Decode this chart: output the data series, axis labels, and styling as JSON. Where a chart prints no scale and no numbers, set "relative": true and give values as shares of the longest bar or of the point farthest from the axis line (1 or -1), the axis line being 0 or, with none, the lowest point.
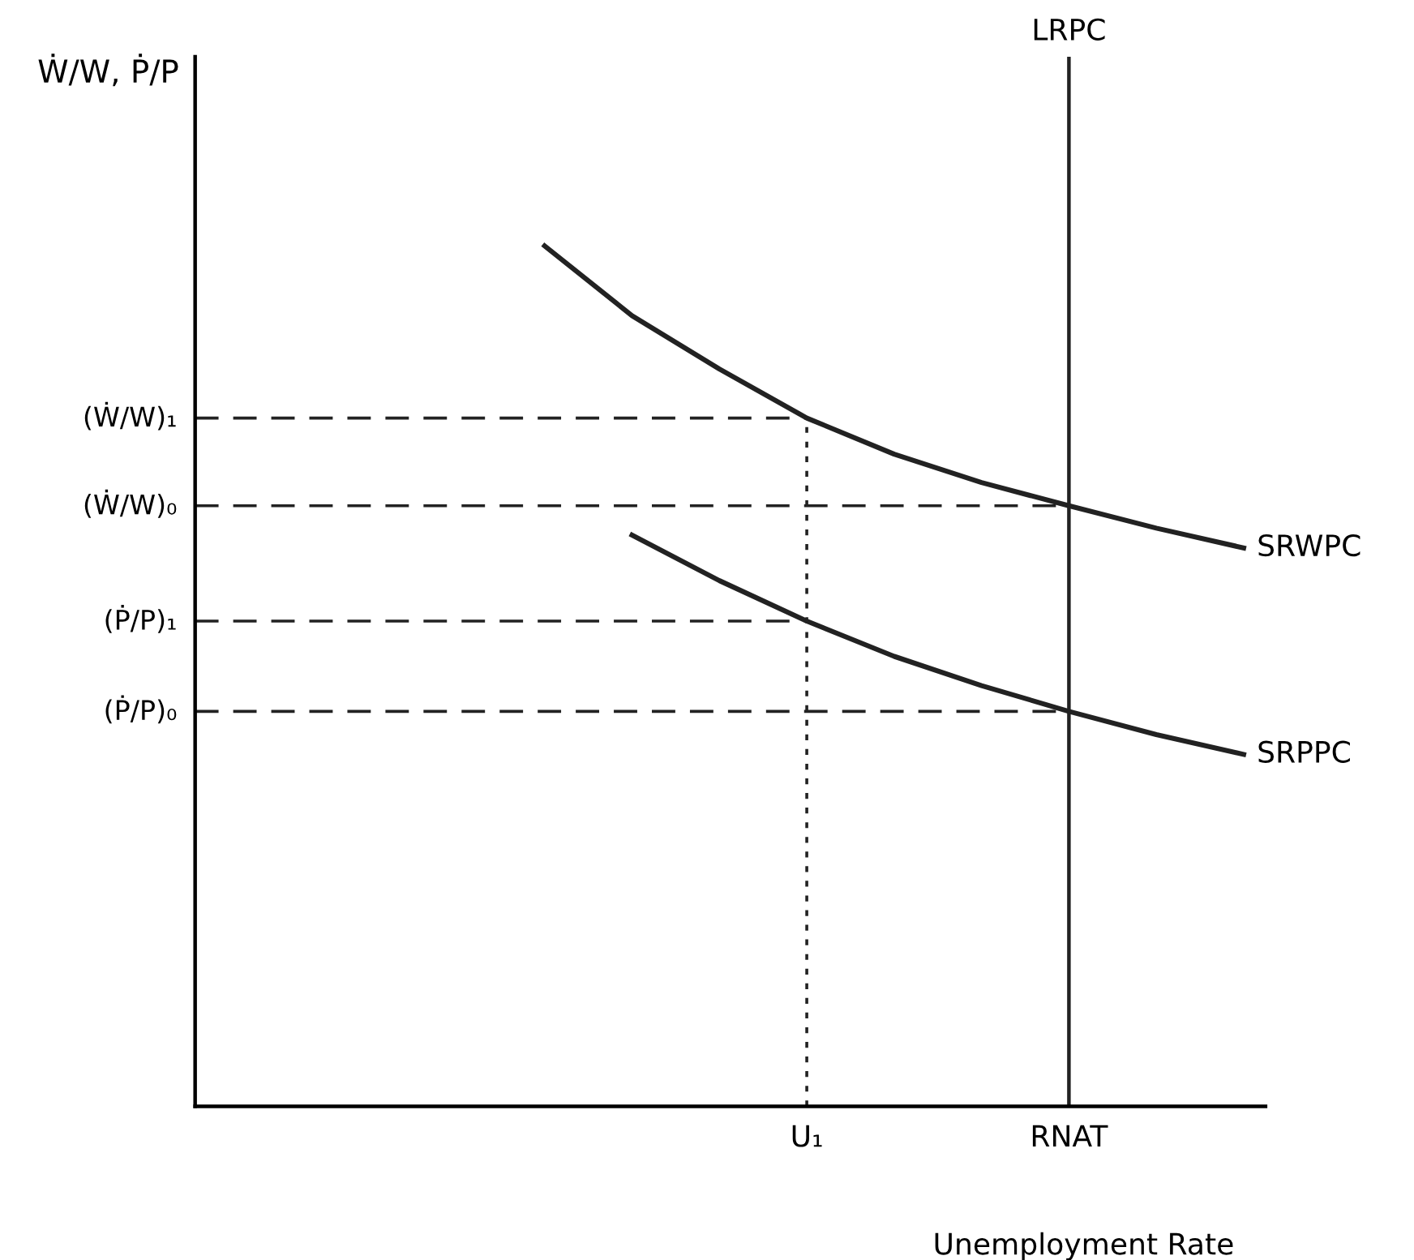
{
  "chart_data": {
    "type": "line",
    "relative": true,
    "xlabel": "Unemployment Rate",
    "annotations": [
      "Ẇ/W, Ṗ/P"
    ],
    "categories": [
      null,
      null,
      null,
      null,
      null,
      null,
      null,
      "U₁",
      null,
      null,
      "RNAT",
      null,
      null
    ],
    "series": [
      {
        "name": "SRWPC",
        "color": "#222222",
        "line_style": "solid",
        "values": [
          null,
          null,
          null,
          null,
          1,
          0.919,
          0.857,
          0.8,
          0.758,
          0.725,
          0.698,
          0.672,
          0.649
        ]
      },
      {
        "name": "SRPPC",
        "color": "#222222",
        "line_style": "solid",
        "values": [
          null,
          null,
          null,
          null,
          null,
          0.664,
          0.611,
          0.564,
          0.523,
          0.489,
          0.459,
          0.432,
          0.409
        ]
      },
      {
        "name": "(Ẇ/W)₁",
        "color": "#222222",
        "line_style": "dashed",
        "values": [
          0.8,
          0.8,
          0.8,
          0.8,
          0.8,
          0.8,
          0.8,
          0.8,
          null,
          null,
          null,
          null,
          null
        ]
      },
      {
        "name": "(Ẇ/W)₀",
        "color": "#222222",
        "line_style": "dashed",
        "values": [
          0.698,
          0.698,
          0.698,
          0.698,
          0.698,
          0.698,
          0.698,
          0.698,
          0.698,
          0.698,
          0.698,
          null,
          null
        ]
      },
      {
        "name": "(Ṗ/P)₁",
        "color": "#222222",
        "line_style": "dashed",
        "values": [
          0.564,
          0.564,
          0.564,
          0.564,
          0.564,
          0.564,
          0.564,
          0.564,
          null,
          null,
          null,
          null,
          null
        ]
      },
      {
        "name": "(Ṗ/P)₀",
        "color": "#222222",
        "line_style": "dashed",
        "values": [
          0.459,
          0.459,
          0.459,
          0.459,
          0.459,
          0.459,
          0.459,
          0.459,
          0.459,
          0.459,
          0.459,
          null,
          null
        ]
      }
    ],
    "ref_lines": [
      {
        "axis": "x",
        "value": "RNAT",
        "label": "LRPC",
        "color": "#222222",
        "line_style": "solid"
      },
      {
        "axis": "x",
        "value": "U₁",
        "color": "#222222",
        "line_style": "dotted"
      }
    ]
  }
}
